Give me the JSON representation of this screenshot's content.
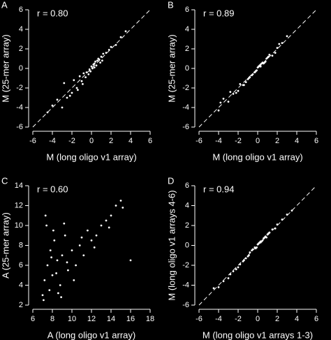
{
  "chart_data": [
    {
      "type": "scatter",
      "panel_label": "A",
      "annotation": "r = 0.80",
      "x_label": "M (long oligo v1 array)",
      "y_label": "M (25-mer array)",
      "xlim": [
        -6,
        6
      ],
      "ylim": [
        -6,
        6
      ],
      "xticks": [
        -6,
        -4,
        -2,
        0,
        2,
        4,
        6
      ],
      "yticks": [
        -6,
        -4,
        -2,
        0,
        2,
        4,
        6
      ],
      "color": "#ffffff",
      "diagonal": true,
      "x": [
        -0.5,
        0,
        0.3,
        -0.2,
        0.5,
        -1,
        0.8,
        1,
        -1.5,
        0.2,
        -0.8,
        1.2,
        0.6,
        -0.3,
        -2,
        -2.5,
        -3,
        1.5,
        2,
        -1.2,
        0.1,
        -0.6,
        0.4,
        -3.5,
        -4,
        2.5,
        3,
        0.9,
        -1.8,
        -0.1,
        1.8,
        -2.2,
        0.7,
        -0.9,
        -4.5,
        3.5,
        -1.4,
        0.3,
        -2.8,
        1.1
      ],
      "y": [
        -0.4,
        0.2,
        0.5,
        -0.1,
        0.3,
        -1.3,
        0.9,
        1.2,
        -2,
        0.4,
        -0.5,
        1.5,
        0.8,
        -0.6,
        -2.5,
        -3,
        -4,
        1.6,
        2.2,
        -0.8,
        0,
        -0.9,
        0.7,
        -3.2,
        -3.8,
        2.4,
        3.2,
        0.6,
        -1.2,
        -0.3,
        1.9,
        -2.8,
        1,
        -1.6,
        -4.5,
        3.8,
        -2.2,
        0.1,
        -1.5,
        0.8
      ]
    },
    {
      "type": "scatter",
      "panel_label": "B",
      "annotation": "r = 0.89",
      "x_label": "M (long oligo v1 array)",
      "y_label": "M (25-mer array)",
      "xlim": [
        -6,
        6
      ],
      "ylim": [
        -6,
        6
      ],
      "xticks": [
        -6,
        -4,
        -2,
        0,
        2,
        4,
        6
      ],
      "yticks": [
        -6,
        -4,
        -2,
        0,
        2,
        4,
        6
      ],
      "color": "#ffffff",
      "diagonal": true,
      "x": [
        -0.5,
        0,
        0.3,
        -0.2,
        0.5,
        -1,
        0.8,
        1,
        -1.5,
        0.2,
        -0.8,
        1.2,
        0.6,
        -0.3,
        -2,
        -2.5,
        -3,
        1.5,
        2,
        -1.2,
        0.1,
        -0.6,
        0.4,
        -3.5,
        -4,
        2.5,
        3,
        0.9,
        -1.8,
        -0.1,
        1.8,
        -2.2,
        0.7,
        -0.9,
        -3.8,
        2.2,
        -1.4,
        0.3,
        -2.8,
        1.1
      ],
      "y": [
        -0.6,
        0.1,
        0.4,
        -0.3,
        0.6,
        -1.1,
        0.7,
        1.1,
        -1.7,
        0.3,
        -0.9,
        1.4,
        0.5,
        -0.4,
        -2.3,
        -2.6,
        -3.4,
        1.3,
        2.1,
        -1.4,
        0.2,
        -0.7,
        0.5,
        -3.1,
        -4.3,
        2.6,
        3.3,
        1,
        -1.6,
        -0.2,
        1.6,
        -2.5,
        0.6,
        -1,
        -3.5,
        2.5,
        -1.7,
        0.2,
        -2.4,
        1.2
      ]
    },
    {
      "type": "scatter",
      "panel_label": "C",
      "annotation": "r = 0.60",
      "x_label": "A (long oligo v1 array)",
      "y_label": "A (25-mer array)",
      "xlim": [
        6,
        18
      ],
      "ylim": [
        2,
        14
      ],
      "xticks": [
        6,
        8,
        10,
        12,
        14,
        16,
        18
      ],
      "yticks": [
        2,
        4,
        6,
        8,
        10,
        12,
        14
      ],
      "color": "#ffffff",
      "diagonal": false,
      "x": [
        7,
        7.2,
        7.5,
        7.8,
        8,
        8.2,
        8.5,
        8.8,
        9,
        9.3,
        9.6,
        10,
        10.4,
        10.8,
        11.2,
        11.6,
        12,
        12.5,
        13,
        13.5,
        14,
        14.5,
        15,
        7.1,
        7.4,
        7.7,
        8.1,
        8.4,
        8.9,
        9.5,
        10.2,
        11,
        12.3,
        7.3,
        7.9,
        8.6,
        9.2,
        13.8,
        15.2,
        16
      ],
      "y": [
        3,
        4.5,
        6,
        7.5,
        5,
        8.5,
        6.5,
        4,
        7,
        9,
        5.5,
        7.5,
        6,
        8,
        7,
        9.5,
        8.5,
        9,
        10,
        10.5,
        11,
        12,
        12.5,
        2.5,
        10,
        3.5,
        9.5,
        5.2,
        2.8,
        6.3,
        4.5,
        8.8,
        7.8,
        11,
        6.8,
        3.2,
        10.2,
        9.8,
        11.8,
        6.5
      ]
    },
    {
      "type": "scatter",
      "panel_label": "D",
      "annotation": "r = 0.94",
      "x_label": "M (long oligo v1 arrays 1-3)",
      "y_label": "M (long oligo v1 arrays 4-6)",
      "xlim": [
        -6,
        6
      ],
      "ylim": [
        -6,
        6
      ],
      "xticks": [
        -6,
        -4,
        -2,
        0,
        2,
        4,
        6
      ],
      "yticks": [
        -6,
        -4,
        -2,
        0,
        2,
        4,
        6
      ],
      "color": "#ffffff",
      "diagonal": true,
      "x": [
        -0.5,
        0,
        0.3,
        -0.2,
        0.5,
        -1,
        0.8,
        1,
        -1.5,
        0.2,
        -0.8,
        1.2,
        0.6,
        -0.3,
        -2,
        -2.5,
        -3,
        1.5,
        2,
        -1.2,
        0.1,
        -0.6,
        0.4,
        -3.5,
        -4,
        2.5,
        3,
        0.9,
        -1.8,
        -0.1,
        1.8,
        -2.2,
        0.7,
        -0.9,
        -4.5,
        3.5,
        -1.4,
        0.3,
        -2.8,
        1.1
      ],
      "y": [
        -0.4,
        0.1,
        0.4,
        -0.3,
        0.5,
        -1.1,
        0.9,
        1.1,
        -1.6,
        0.3,
        -0.7,
        1.3,
        0.7,
        -0.2,
        -2.2,
        -2.6,
        -3.3,
        1.6,
        2.1,
        -1.3,
        0.2,
        -0.5,
        0.4,
        -3.6,
        -4.2,
        2.6,
        3.1,
        0.8,
        -1.9,
        -0.2,
        1.7,
        -2.4,
        0.8,
        -1,
        -4.3,
        3.5,
        -1.5,
        0.3,
        -2.9,
        1.2
      ]
    }
  ]
}
